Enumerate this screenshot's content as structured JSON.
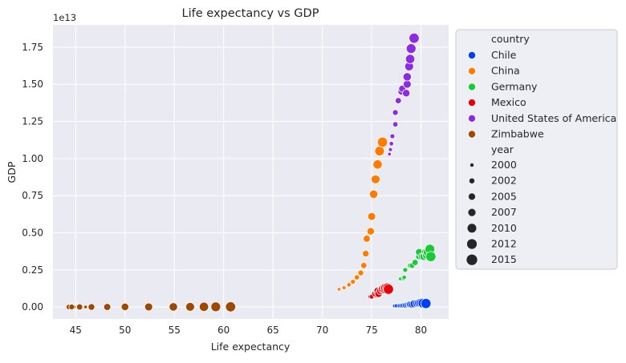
{
  "chart_data": {
    "type": "scatter",
    "title": "Life expectancy vs GDP",
    "xlabel": "Life expectancy",
    "ylabel": "GDP",
    "y_offset_label": "1e13",
    "xlim": [
      42.7,
      82.8
    ],
    "ylim": [
      -0.08,
      1.9
    ],
    "y_scale_note": "values in units of 1e13",
    "x_ticks": [
      {
        "value": 45,
        "label": "45"
      },
      {
        "value": 50,
        "label": "50"
      },
      {
        "value": 55,
        "label": "55"
      },
      {
        "value": 60,
        "label": "60"
      },
      {
        "value": 65,
        "label": "65"
      },
      {
        "value": 70,
        "label": "70"
      },
      {
        "value": 75,
        "label": "75"
      },
      {
        "value": 80,
        "label": "80"
      }
    ],
    "y_ticks": [
      {
        "value": 0.0,
        "label": "0.00"
      },
      {
        "value": 0.25,
        "label": "0.25"
      },
      {
        "value": 0.5,
        "label": "0.50"
      },
      {
        "value": 0.75,
        "label": "0.75"
      },
      {
        "value": 1.0,
        "label": "1.00"
      },
      {
        "value": 1.25,
        "label": "1.25"
      },
      {
        "value": 1.5,
        "label": "1.50"
      },
      {
        "value": 1.75,
        "label": "1.75"
      }
    ],
    "grid": true,
    "background": "#eaeaf2",
    "grid_color": "#ffffff",
    "legend_position": "outside-right",
    "hue_title": "country",
    "size_title": "year",
    "series": [
      {
        "name": "Chile",
        "color": "#023eff",
        "points": [
          {
            "year": 2000,
            "x": 77.3,
            "y": 0.008
          },
          {
            "year": 2001,
            "x": 77.5,
            "y": 0.009
          },
          {
            "year": 2002,
            "x": 77.8,
            "y": 0.009
          },
          {
            "year": 2003,
            "x": 78.0,
            "y": 0.01
          },
          {
            "year": 2004,
            "x": 78.2,
            "y": 0.011
          },
          {
            "year": 2005,
            "x": 78.4,
            "y": 0.012
          },
          {
            "year": 2006,
            "x": 78.6,
            "y": 0.015
          },
          {
            "year": 2007,
            "x": 78.8,
            "y": 0.017
          },
          {
            "year": 2008,
            "x": 78.9,
            "y": 0.018
          },
          {
            "year": 2009,
            "x": 79.1,
            "y": 0.017
          },
          {
            "year": 2010,
            "x": 79.3,
            "y": 0.022
          },
          {
            "year": 2011,
            "x": 79.6,
            "y": 0.025
          },
          {
            "year": 2012,
            "x": 79.8,
            "y": 0.027
          },
          {
            "year": 2013,
            "x": 80.0,
            "y": 0.028
          },
          {
            "year": 2014,
            "x": 80.2,
            "y": 0.026
          },
          {
            "year": 2015,
            "x": 80.5,
            "y": 0.024
          }
        ]
      },
      {
        "name": "China",
        "color": "#ff7c00",
        "points": [
          {
            "year": 2000,
            "x": 71.7,
            "y": 0.12
          },
          {
            "year": 2001,
            "x": 72.2,
            "y": 0.13
          },
          {
            "year": 2002,
            "x": 72.7,
            "y": 0.15
          },
          {
            "year": 2003,
            "x": 73.1,
            "y": 0.17
          },
          {
            "year": 2004,
            "x": 73.5,
            "y": 0.2
          },
          {
            "year": 2005,
            "x": 73.9,
            "y": 0.23
          },
          {
            "year": 2006,
            "x": 74.2,
            "y": 0.28
          },
          {
            "year": 2007,
            "x": 74.4,
            "y": 0.36
          },
          {
            "year": 2008,
            "x": 74.5,
            "y": 0.46
          },
          {
            "year": 2009,
            "x": 74.9,
            "y": 0.51
          },
          {
            "year": 2010,
            "x": 75.0,
            "y": 0.61
          },
          {
            "year": 2011,
            "x": 75.2,
            "y": 0.76
          },
          {
            "year": 2012,
            "x": 75.4,
            "y": 0.86
          },
          {
            "year": 2013,
            "x": 75.6,
            "y": 0.96
          },
          {
            "year": 2014,
            "x": 75.8,
            "y": 1.05
          },
          {
            "year": 2015,
            "x": 76.1,
            "y": 1.11
          }
        ]
      },
      {
        "name": "Germany",
        "color": "#1ac938",
        "points": [
          {
            "year": 2000,
            "x": 77.9,
            "y": 0.19
          },
          {
            "year": 2001,
            "x": 78.2,
            "y": 0.19
          },
          {
            "year": 2002,
            "x": 78.3,
            "y": 0.2
          },
          {
            "year": 2003,
            "x": 78.4,
            "y": 0.25
          },
          {
            "year": 2004,
            "x": 78.9,
            "y": 0.28
          },
          {
            "year": 2005,
            "x": 79.1,
            "y": 0.28
          },
          {
            "year": 2006,
            "x": 79.4,
            "y": 0.3
          },
          {
            "year": 2007,
            "x": 79.8,
            "y": 0.34
          },
          {
            "year": 2008,
            "x": 79.8,
            "y": 0.37
          },
          {
            "year": 2009,
            "x": 80.1,
            "y": 0.34
          },
          {
            "year": 2010,
            "x": 80.3,
            "y": 0.34
          },
          {
            "year": 2011,
            "x": 80.5,
            "y": 0.37
          },
          {
            "year": 2012,
            "x": 80.6,
            "y": 0.35
          },
          {
            "year": 2013,
            "x": 80.7,
            "y": 0.37
          },
          {
            "year": 2014,
            "x": 80.9,
            "y": 0.39
          },
          {
            "year": 2015,
            "x": 81.0,
            "y": 0.34
          }
        ]
      },
      {
        "name": "Mexico",
        "color": "#e8000b",
        "points": [
          {
            "year": 2000,
            "x": 74.8,
            "y": 0.07
          },
          {
            "year": 2001,
            "x": 75.0,
            "y": 0.07
          },
          {
            "year": 2002,
            "x": 75.0,
            "y": 0.07
          },
          {
            "year": 2003,
            "x": 75.0,
            "y": 0.07
          },
          {
            "year": 2004,
            "x": 75.4,
            "y": 0.08
          },
          {
            "year": 2005,
            "x": 75.3,
            "y": 0.09
          },
          {
            "year": 2006,
            "x": 75.5,
            "y": 0.1
          },
          {
            "year": 2007,
            "x": 75.7,
            "y": 0.1
          },
          {
            "year": 2008,
            "x": 75.6,
            "y": 0.11
          },
          {
            "year": 2009,
            "x": 75.7,
            "y": 0.09
          },
          {
            "year": 2010,
            "x": 75.9,
            "y": 0.11
          },
          {
            "year": 2011,
            "x": 76.1,
            "y": 0.12
          },
          {
            "year": 2012,
            "x": 76.3,
            "y": 0.12
          },
          {
            "year": 2013,
            "x": 76.4,
            "y": 0.13
          },
          {
            "year": 2014,
            "x": 76.6,
            "y": 0.13
          },
          {
            "year": 2015,
            "x": 76.7,
            "y": 0.12
          }
        ]
      },
      {
        "name": "United States of America",
        "color": "#8b2be2",
        "points": [
          {
            "year": 2000,
            "x": 76.8,
            "y": 1.03
          },
          {
            "year": 2001,
            "x": 76.9,
            "y": 1.06
          },
          {
            "year": 2002,
            "x": 77.0,
            "y": 1.1
          },
          {
            "year": 2003,
            "x": 77.1,
            "y": 1.15
          },
          {
            "year": 2004,
            "x": 77.4,
            "y": 1.23
          },
          {
            "year": 2005,
            "x": 77.4,
            "y": 1.31
          },
          {
            "year": 2006,
            "x": 77.7,
            "y": 1.39
          },
          {
            "year": 2007,
            "x": 78.0,
            "y": 1.45
          },
          {
            "year": 2008,
            "x": 78.1,
            "y": 1.47
          },
          {
            "year": 2009,
            "x": 78.5,
            "y": 1.44
          },
          {
            "year": 2010,
            "x": 78.6,
            "y": 1.5
          },
          {
            "year": 2011,
            "x": 78.6,
            "y": 1.55
          },
          {
            "year": 2012,
            "x": 78.8,
            "y": 1.62
          },
          {
            "year": 2013,
            "x": 78.9,
            "y": 1.67
          },
          {
            "year": 2014,
            "x": 79.0,
            "y": 1.74
          },
          {
            "year": 2015,
            "x": 79.3,
            "y": 1.81
          }
        ]
      },
      {
        "name": "Zimbabwe",
        "color": "#9f4800",
        "points": [
          {
            "year": 2000,
            "x": 46.0,
            "y": 0.0007
          },
          {
            "year": 2001,
            "x": 45.3,
            "y": 0.0007
          },
          {
            "year": 2002,
            "x": 44.8,
            "y": 0.0006
          },
          {
            "year": 2003,
            "x": 44.5,
            "y": 0.0006
          },
          {
            "year": 2004,
            "x": 44.3,
            "y": 0.0005
          },
          {
            "year": 2005,
            "x": 44.6,
            "y": 0.0006
          },
          {
            "year": 2006,
            "x": 45.4,
            "y": 0.0005
          },
          {
            "year": 2007,
            "x": 46.6,
            "y": 0.0005
          },
          {
            "year": 2008,
            "x": 48.2,
            "y": 0.0004
          },
          {
            "year": 2009,
            "x": 50.0,
            "y": 0.0008
          },
          {
            "year": 2010,
            "x": 52.4,
            "y": 0.001
          },
          {
            "year": 2011,
            "x": 54.9,
            "y": 0.0012
          },
          {
            "year": 2012,
            "x": 56.6,
            "y": 0.0014
          },
          {
            "year": 2013,
            "x": 58.0,
            "y": 0.0015
          },
          {
            "year": 2014,
            "x": 59.2,
            "y": 0.0016
          },
          {
            "year": 2015,
            "x": 60.7,
            "y": 0.0016
          }
        ]
      }
    ],
    "size_legend": [
      "2000",
      "2002",
      "2005",
      "2007",
      "2010",
      "2012",
      "2015"
    ]
  }
}
